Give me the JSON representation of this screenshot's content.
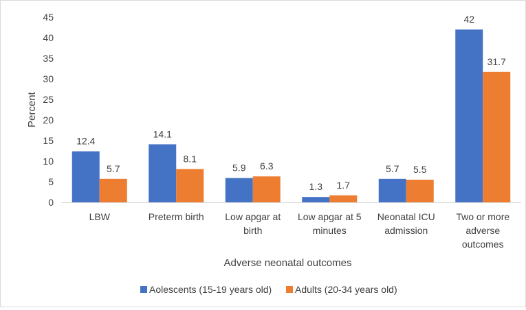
{
  "chart_data": {
    "type": "bar",
    "title": "",
    "xlabel": "Adverse neonatal outcomes",
    "ylabel": "Percent",
    "ylim": [
      0,
      45
    ],
    "yticks": [
      0,
      5,
      10,
      15,
      20,
      25,
      30,
      35,
      40,
      45
    ],
    "grid": false,
    "legend_position": "bottom",
    "categories": [
      [
        "LBW"
      ],
      [
        "Preterm birth"
      ],
      [
        "Low apgar at",
        "birth"
      ],
      [
        "Low apgar at 5",
        "minutes"
      ],
      [
        "Neonatal ICU",
        "admission"
      ],
      [
        "Two or more",
        "adverse",
        "outcomes"
      ]
    ],
    "series": [
      {
        "name": "Aolescents (15-19 years old)",
        "color": "#4472c4",
        "values": [
          12.4,
          14.1,
          5.9,
          1.3,
          5.7,
          42
        ]
      },
      {
        "name": "Adults (20-34 years old)",
        "color": "#ed7d31",
        "values": [
          5.7,
          8.1,
          6.3,
          1.7,
          5.5,
          31.7
        ]
      }
    ]
  }
}
